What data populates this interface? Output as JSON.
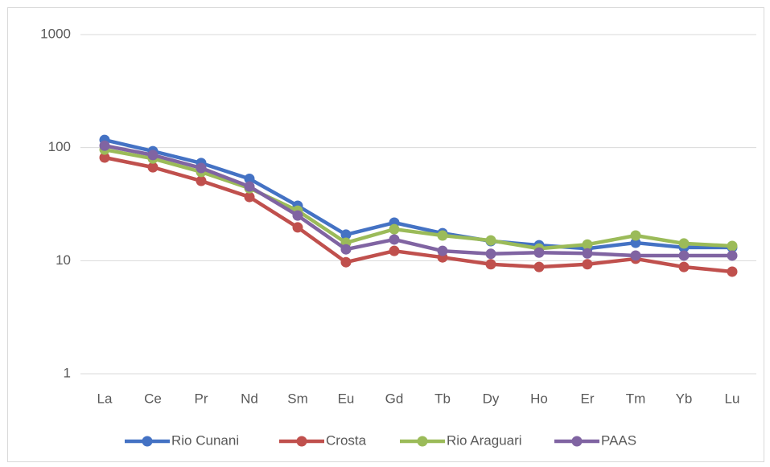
{
  "chart_data": {
    "type": "line",
    "categories": [
      "La",
      "Ce",
      "Pr",
      "Nd",
      "Sm",
      "Eu",
      "Gd",
      "Tb",
      "Dy",
      "Ho",
      "Er",
      "Tm",
      "Yb",
      "Lu"
    ],
    "series": [
      {
        "name": "Rio Cunani",
        "color": "#4472c4",
        "values": [
          117,
          93,
          73,
          53,
          30.6,
          17,
          21.7,
          17.5,
          14.9,
          13.7,
          12.8,
          14.4,
          13.1,
          13.1
        ]
      },
      {
        "name": "Crosta",
        "color": "#c0504d",
        "values": [
          81.7,
          67,
          50.8,
          36.6,
          19.7,
          9.7,
          12.2,
          10.7,
          9.3,
          8.8,
          9.3,
          10.4,
          8.8,
          8.0
        ]
      },
      {
        "name": "Rio Araguari",
        "color": "#9bbb59",
        "values": [
          96,
          80,
          61,
          43.8,
          27.7,
          14.4,
          19,
          16.7,
          15.1,
          12.8,
          13.9,
          16.7,
          14.2,
          13.5
        ]
      },
      {
        "name": "PAAS",
        "color": "#8064a2",
        "values": [
          104,
          86,
          66,
          45.3,
          25.1,
          12.6,
          15.4,
          12.2,
          11.5,
          11.8,
          11.6,
          11.1,
          11.1,
          11.1
        ]
      }
    ],
    "ylim": [
      1,
      1000
    ],
    "yticks": [
      1,
      10,
      100,
      1000
    ],
    "log_scale": true,
    "grid": true,
    "legend": "bottom"
  }
}
